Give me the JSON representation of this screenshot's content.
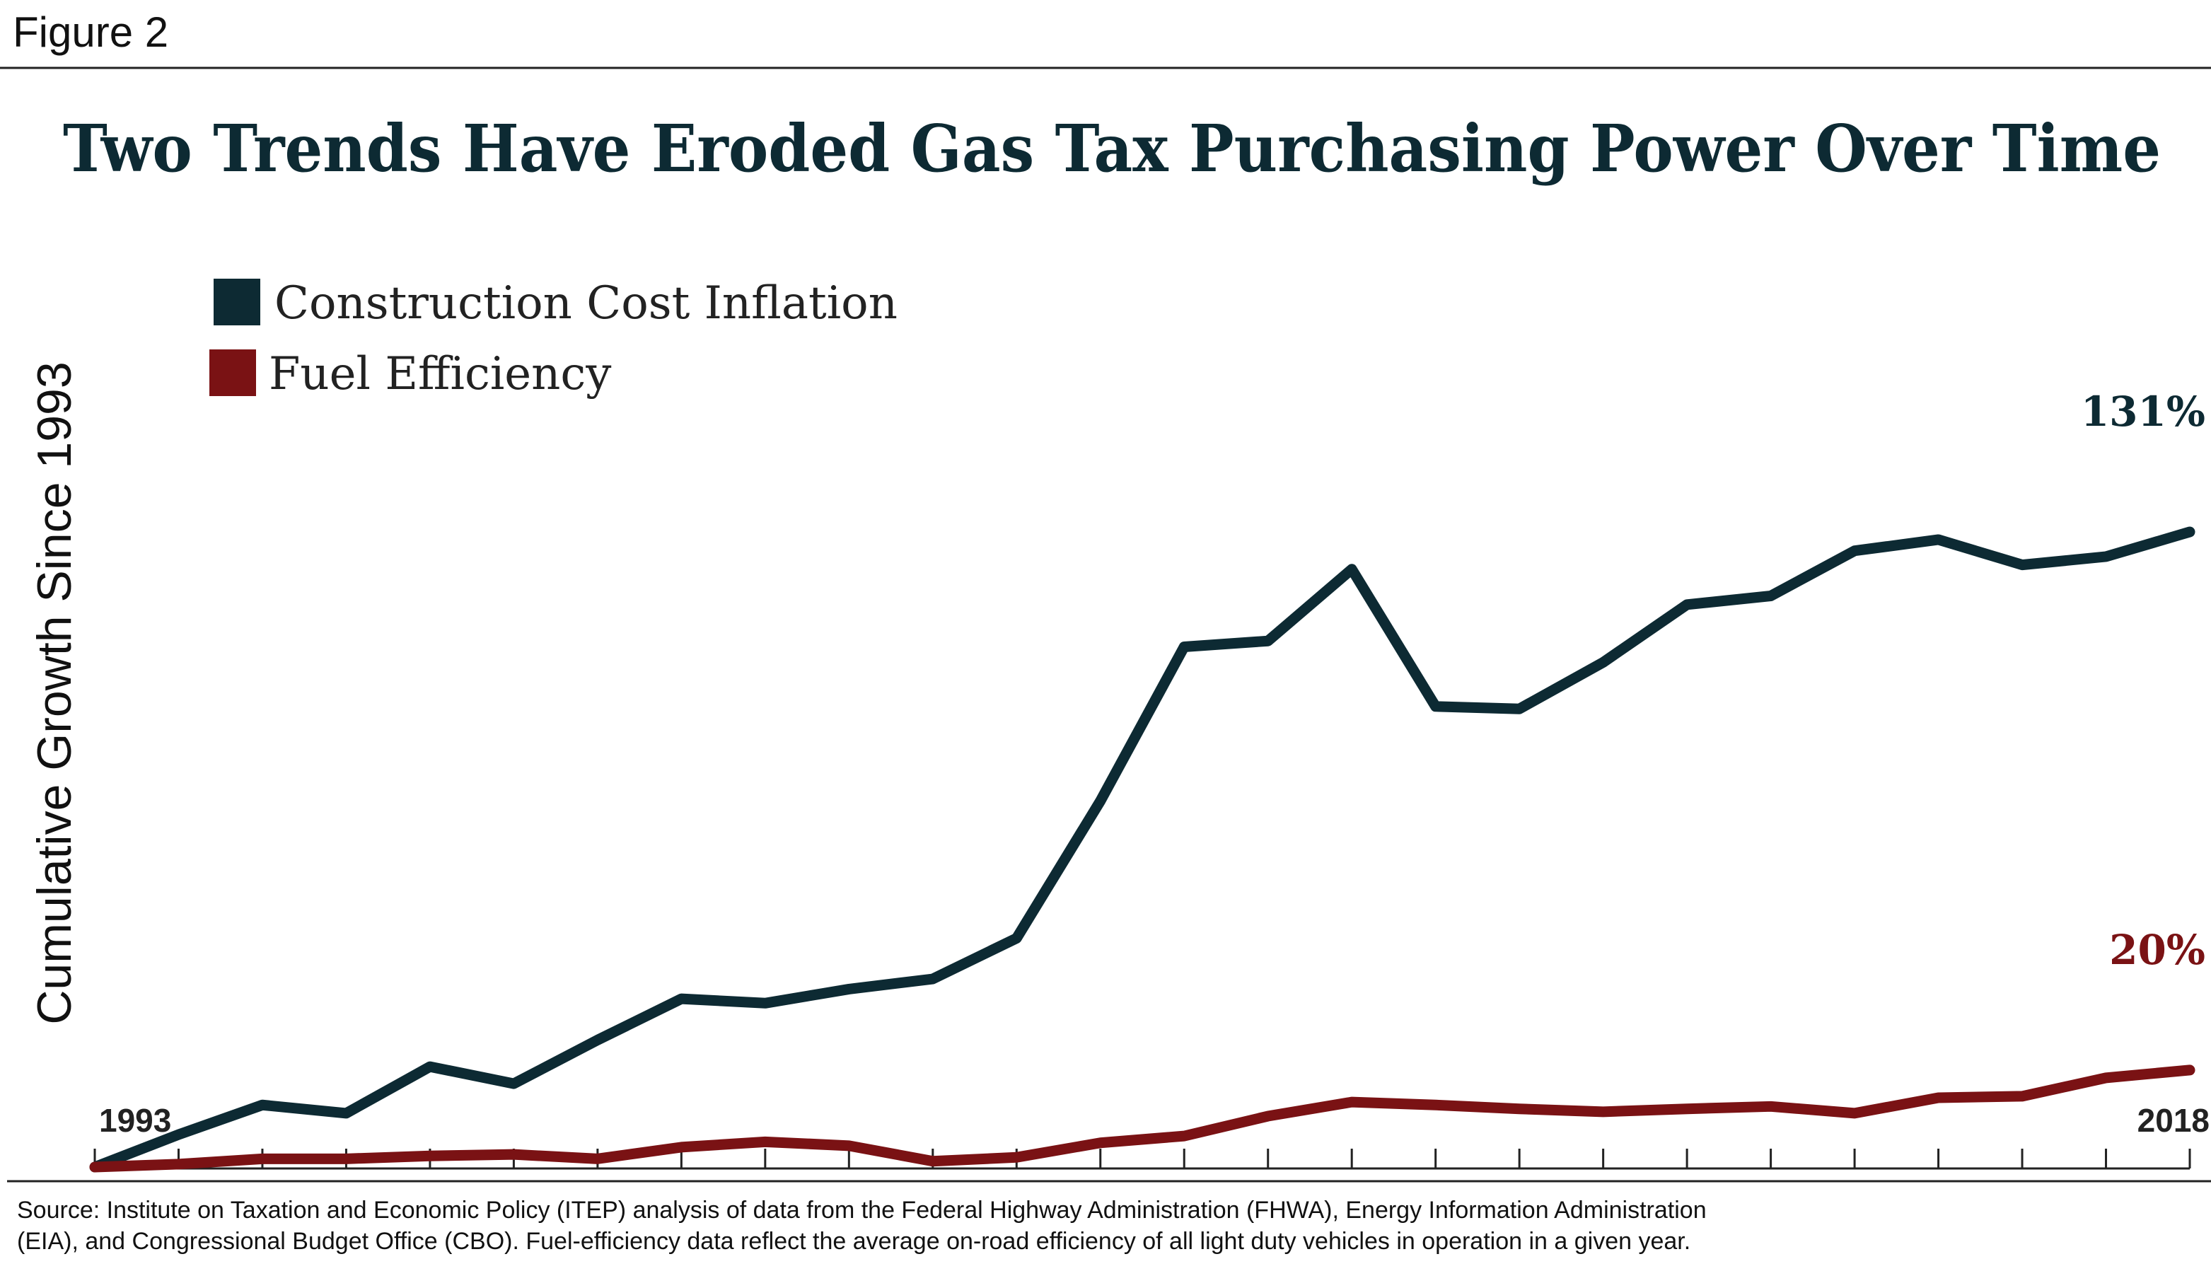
{
  "figure_label": "Figure 2",
  "chart_data": {
    "type": "line",
    "title": "Two Trends Have Eroded Gas Tax Purchasing Power Over Time",
    "y_label": "Cumulative Growth Since 1993",
    "categories": [
      "1993",
      null,
      null,
      null,
      null,
      null,
      null,
      null,
      null,
      null,
      null,
      null,
      null,
      null,
      null,
      null,
      null,
      null,
      null,
      null,
      null,
      null,
      null,
      null,
      null,
      "2018"
    ],
    "series": [
      {
        "name": "Construction Cost Inflation",
        "color": "#0d2a33",
        "values": [
          0,
          6.7,
          12.8,
          11.1,
          20.7,
          17.2,
          26.2,
          34.7,
          33.8,
          36.7,
          38.8,
          47.2,
          75.5,
          107.3,
          108.5,
          123.3,
          95,
          94.5,
          104.1,
          116,
          117.8,
          127.1,
          129.4,
          124.2,
          125.9,
          131
        ],
        "value_labels": [
          null,
          null,
          null,
          null,
          null,
          null,
          null,
          null,
          null,
          null,
          null,
          null,
          null,
          null,
          null,
          null,
          null,
          null,
          null,
          null,
          null,
          null,
          null,
          null,
          null,
          "131%"
        ]
      },
      {
        "name": "Fuel Efficiency",
        "color": "#7a1214",
        "values": [
          0,
          0.6,
          1.7,
          1.7,
          2.3,
          2.6,
          1.7,
          4.1,
          5.2,
          4.4,
          1.2,
          2,
          5,
          6.4,
          10.5,
          13.4,
          12.8,
          12,
          11.4,
          12,
          12.5,
          11.1,
          14.3,
          14.6,
          18.4,
          20
        ],
        "value_labels": [
          null,
          null,
          null,
          null,
          null,
          null,
          null,
          null,
          null,
          null,
          null,
          null,
          null,
          null,
          null,
          null,
          null,
          null,
          null,
          null,
          null,
          null,
          null,
          null,
          null,
          "20%"
        ]
      }
    ],
    "source": [
      "Source: Institute on Taxation and Economic Policy (ITEP) analysis of data from the Federal Highway Administration (FHWA), Energy Information Administration",
      "(EIA), and Congressional Budget Office (CBO). Fuel-efficiency data reflect the average on-road efficiency of all light duty vehicles in  operation in a given year."
    ]
  }
}
